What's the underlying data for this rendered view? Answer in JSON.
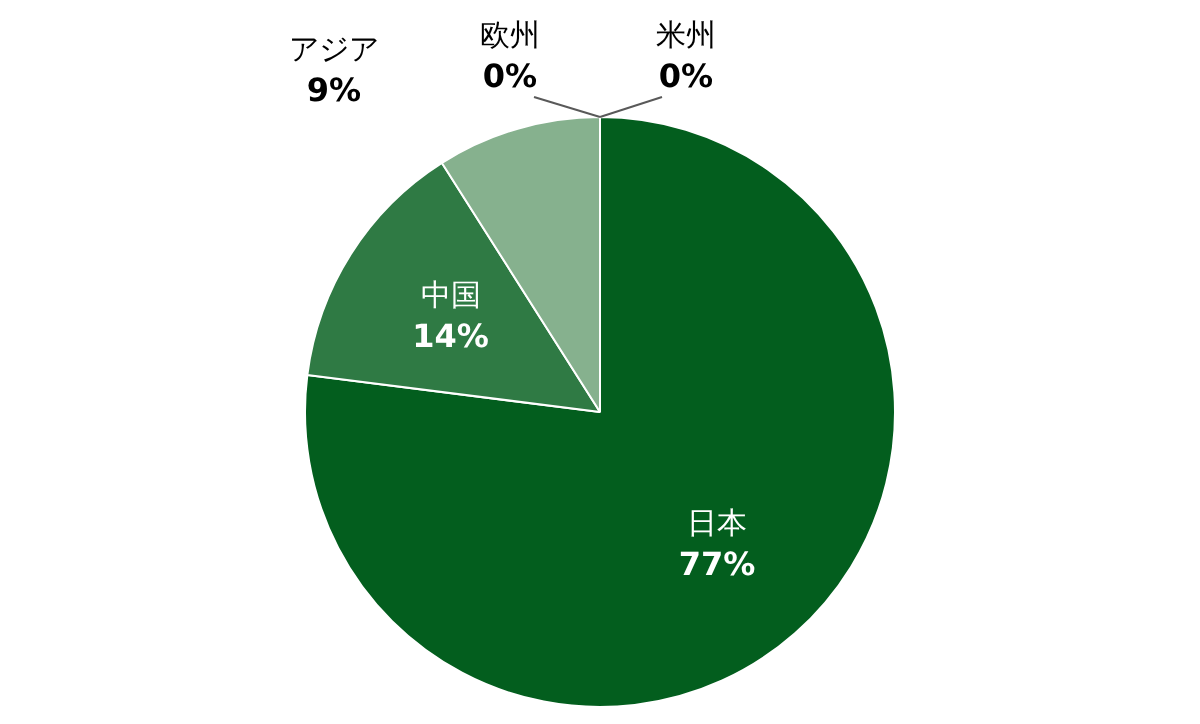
{
  "chart_data": {
    "type": "pie",
    "categories": [
      "日本",
      "中国",
      "アジア",
      "欧州",
      "米州"
    ],
    "values": [
      77,
      14,
      9,
      0,
      0
    ],
    "value_labels": [
      "77%",
      "14%",
      "9%",
      "0%",
      "0%"
    ],
    "colors": [
      "#035e1e",
      "#2f7a44",
      "#86b18e",
      "#a9c9ad",
      "#c5dcc8"
    ],
    "legend": false
  }
}
